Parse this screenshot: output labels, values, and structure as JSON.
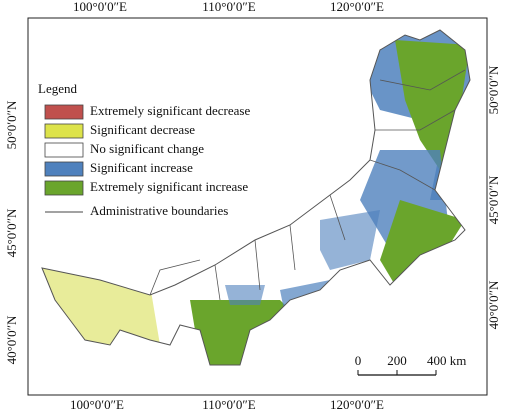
{
  "map": {
    "graticule": {
      "top": [
        "100°0′0″E",
        "110°0′0″E",
        "120°0′0″E"
      ],
      "bottom": [
        "100°0′0″E",
        "110°0′0″E",
        "120°0′0″E"
      ],
      "left": [
        "50°0′0″N",
        "45°0′0″N",
        "40°0′0″N"
      ],
      "right": [
        "50°0′0″N",
        "45°0′0″N",
        "40°0′0″N"
      ]
    },
    "legend": {
      "title": "Legend",
      "items": [
        {
          "label": "Extremely significant decrease",
          "color": "#c0504d"
        },
        {
          "label": "Significant decrease",
          "color": "#dde34a"
        },
        {
          "label": "No significant change",
          "color": "#ffffff"
        },
        {
          "label": "Significant increase",
          "color": "#4f81bd"
        },
        {
          "label": "Extremely significant increase",
          "color": "#6aa52c"
        },
        {
          "label": "Administrative boundaries",
          "color": "#444444",
          "symbol": "line"
        }
      ]
    },
    "scale_bar": {
      "labels": [
        "0",
        "200",
        "400 km"
      ]
    }
  }
}
